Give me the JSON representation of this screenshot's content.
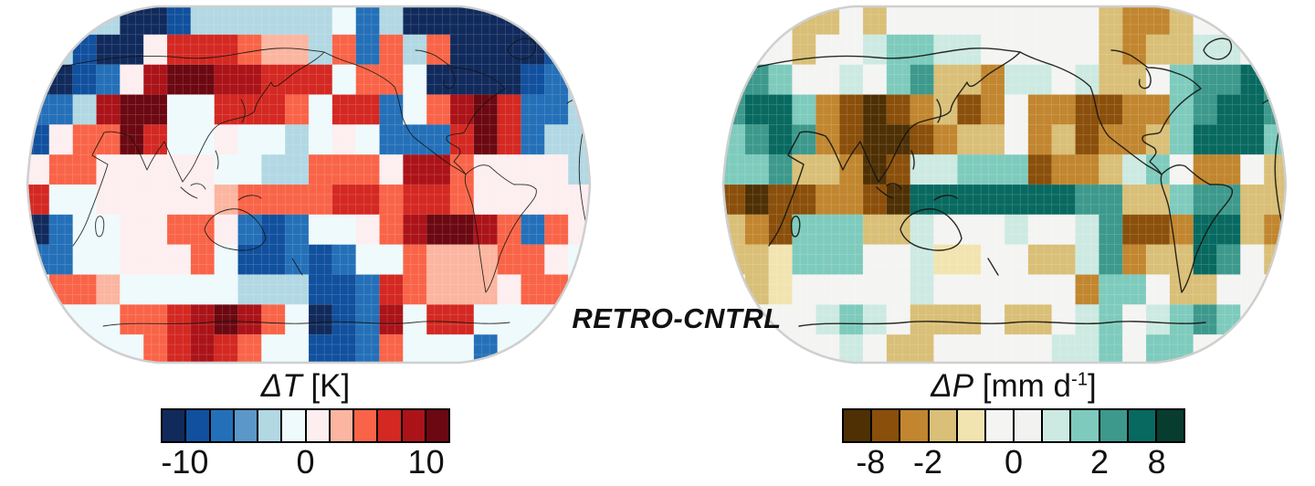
{
  "figure": {
    "center_label": "RETRO-CNTRL",
    "background": "#ffffff"
  },
  "chart_data": [
    {
      "type": "heatmap",
      "id": "delta_t",
      "title": "ΔT [K]",
      "title_parts": {
        "symbol": "ΔT",
        "unit_main": " [K]",
        "unit_sup": "",
        "unit_end": ""
      },
      "variable": "surface-temperature-anomaly",
      "projection": "robinson-pacific-centered",
      "legend_position": "bottom",
      "palette": [
        "#112a5c",
        "#11509e",
        "#2470b8",
        "#5b97c8",
        "#b2d8e4",
        "#eefafc",
        "#fdeef0",
        "#fbb5a0",
        "#f96448",
        "#d42822",
        "#ab1319",
        "#6b0811"
      ],
      "levels": [
        -12,
        -10,
        -8,
        -6,
        -4,
        -2,
        0,
        2,
        4,
        6,
        8,
        10,
        12
      ],
      "colorbar_ticks": [
        {
          "label": "-10",
          "boundary": 1
        },
        {
          "label": "0",
          "boundary": 6
        },
        {
          "label": "10",
          "boundary": 11
        }
      ],
      "grid_cols": 24,
      "grid_rows": 12,
      "cells": [
        [
          4,
          4,
          4,
          4,
          0,
          0,
          1,
          4,
          4,
          4,
          4,
          4,
          4,
          5,
          2,
          4,
          0,
          0,
          0,
          0,
          0,
          0,
          2,
          4
        ],
        [
          4,
          4,
          1,
          0,
          0,
          6,
          9,
          9,
          9,
          8,
          7,
          7,
          4,
          8,
          2,
          8,
          4,
          8,
          0,
          0,
          0,
          0,
          1,
          2
        ],
        [
          0,
          0,
          1,
          2,
          6,
          10,
          11,
          11,
          10,
          10,
          9,
          9,
          9,
          5,
          8,
          8,
          5,
          0,
          0,
          0,
          0,
          1,
          2,
          4
        ],
        [
          2,
          2,
          4,
          10,
          11,
          11,
          5,
          5,
          9,
          9,
          9,
          8,
          5,
          9,
          9,
          2,
          5,
          8,
          10,
          11,
          9,
          2,
          2,
          4
        ],
        [
          1,
          6,
          8,
          8,
          11,
          9,
          5,
          5,
          6,
          5,
          5,
          4,
          5,
          6,
          5,
          2,
          2,
          2,
          9,
          11,
          9,
          2,
          4,
          4
        ],
        [
          6,
          8,
          8,
          6,
          6,
          6,
          6,
          6,
          5,
          5,
          4,
          4,
          8,
          8,
          8,
          6,
          10,
          10,
          8,
          6,
          6,
          6,
          6,
          4
        ],
        [
          9,
          5,
          5,
          6,
          6,
          6,
          6,
          6,
          7,
          8,
          8,
          8,
          8,
          9,
          9,
          8,
          9,
          9,
          8,
          6,
          6,
          6,
          6,
          6
        ],
        [
          0,
          2,
          5,
          5,
          6,
          6,
          8,
          8,
          6,
          2,
          1,
          2,
          5,
          5,
          6,
          8,
          10,
          11,
          11,
          10,
          8,
          2,
          8,
          6
        ],
        [
          2,
          2,
          5,
          5,
          6,
          6,
          6,
          8,
          5,
          1,
          1,
          2,
          1,
          2,
          5,
          5,
          8,
          7,
          7,
          7,
          8,
          8,
          6,
          5
        ],
        [
          5,
          8,
          8,
          7,
          5,
          5,
          5,
          5,
          5,
          4,
          4,
          4,
          1,
          1,
          2,
          9,
          8,
          7,
          7,
          7,
          6,
          8,
          8,
          5
        ],
        [
          5,
          5,
          5,
          5,
          8,
          8,
          9,
          10,
          11,
          10,
          8,
          5,
          0,
          1,
          2,
          10,
          5,
          9,
          9,
          5,
          5,
          5,
          5,
          5
        ],
        [
          5,
          5,
          5,
          5,
          5,
          8,
          9,
          10,
          9,
          8,
          5,
          5,
          1,
          1,
          2,
          8,
          5,
          5,
          5,
          2,
          5,
          5,
          5,
          5
        ]
      ]
    },
    {
      "type": "heatmap",
      "id": "delta_p",
      "title": "ΔP [mm d⁻¹]",
      "title_parts": {
        "symbol": "ΔP",
        "unit_main": " [mm d",
        "unit_sup": "-1",
        "unit_end": "]"
      },
      "variable": "precipitation-anomaly",
      "projection": "robinson-pacific-centered",
      "legend_position": "bottom",
      "palette": [
        "#4e3004",
        "#8a4f0b",
        "#c1862f",
        "#d9bf77",
        "#f2e4b0",
        "#f4f4f2",
        "#f2f2f0",
        "#cdeae2",
        "#7ecbbd",
        "#3d998c",
        "#086960",
        "#073c2e"
      ],
      "levels": [
        -16,
        -8,
        -4,
        -2,
        -1,
        -0.5,
        0,
        0.5,
        1,
        2,
        4,
        8,
        16
      ],
      "colorbar_ticks": [
        {
          "label": "-8",
          "boundary": 1
        },
        {
          "label": "-2",
          "boundary": 3
        },
        {
          "label": "0",
          "boundary": 6
        },
        {
          "label": "2",
          "boundary": 9
        },
        {
          "label": "8",
          "boundary": 11
        }
      ],
      "grid_cols": 24,
      "grid_rows": 12,
      "cells": [
        [
          5,
          5,
          5,
          3,
          3,
          5,
          3,
          5,
          5,
          5,
          5,
          5,
          5,
          5,
          5,
          5,
          3,
          2,
          2,
          3,
          5,
          5,
          5,
          3
        ],
        [
          5,
          5,
          5,
          3,
          5,
          5,
          7,
          8,
          8,
          7,
          7,
          5,
          5,
          5,
          5,
          5,
          3,
          2,
          3,
          3,
          7,
          7,
          5,
          3
        ],
        [
          9,
          9,
          8,
          5,
          5,
          7,
          5,
          8,
          9,
          3,
          3,
          2,
          7,
          7,
          5,
          7,
          3,
          3,
          5,
          8,
          9,
          9,
          10,
          9
        ],
        [
          9,
          10,
          10,
          8,
          2,
          1,
          0,
          1,
          2,
          3,
          1,
          2,
          5,
          2,
          2,
          1,
          1,
          2,
          2,
          8,
          9,
          10,
          10,
          9
        ],
        [
          8,
          9,
          10,
          9,
          2,
          1,
          0,
          0,
          1,
          2,
          3,
          3,
          5,
          2,
          3,
          1,
          2,
          2,
          3,
          8,
          10,
          10,
          10,
          8
        ],
        [
          8,
          8,
          9,
          3,
          3,
          2,
          0,
          1,
          7,
          7,
          8,
          8,
          8,
          1,
          2,
          2,
          3,
          7,
          8,
          5,
          2,
          2,
          5,
          3
        ],
        [
          1,
          0,
          1,
          1,
          2,
          2,
          1,
          0,
          10,
          10,
          10,
          10,
          10,
          10,
          10,
          9,
          9,
          3,
          3,
          8,
          9,
          9,
          3,
          3
        ],
        [
          3,
          2,
          1,
          8,
          8,
          8,
          3,
          3,
          7,
          5,
          5,
          5,
          7,
          5,
          5,
          7,
          9,
          1,
          1,
          2,
          10,
          10,
          3,
          2
        ],
        [
          3,
          3,
          4,
          8,
          8,
          8,
          5,
          5,
          7,
          4,
          4,
          5,
          5,
          3,
          3,
          7,
          9,
          2,
          3,
          3,
          10,
          9,
          5,
          3
        ],
        [
          5,
          3,
          4,
          5,
          5,
          5,
          5,
          5,
          7,
          5,
          5,
          5,
          5,
          5,
          5,
          2,
          8,
          8,
          5,
          3,
          3,
          5,
          5,
          5
        ],
        [
          5,
          5,
          5,
          5,
          7,
          8,
          7,
          5,
          3,
          3,
          3,
          5,
          3,
          3,
          5,
          7,
          8,
          5,
          7,
          8,
          9,
          8,
          5,
          5
        ],
        [
          5,
          5,
          5,
          5,
          5,
          7,
          5,
          3,
          3,
          5,
          5,
          5,
          5,
          5,
          7,
          7,
          8,
          5,
          8,
          8,
          5,
          5,
          5,
          5
        ]
      ]
    }
  ]
}
